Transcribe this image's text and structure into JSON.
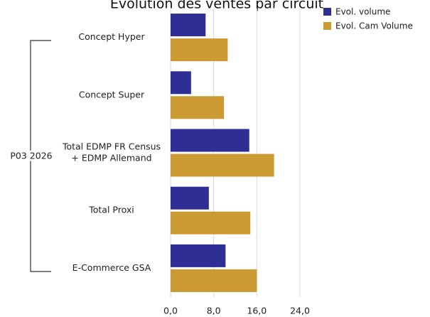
{
  "colors": {
    "evol_volume": "#2f2e94",
    "evol_cam_volume": "#cc9a33"
  },
  "chart_data": {
    "type": "bar",
    "orientation": "horizontal",
    "title": "Évolution des ventes par circuit",
    "group_label": "P03 2026",
    "categories": [
      [
        "Concept Hyper"
      ],
      [
        "Concept Super"
      ],
      [
        "Total EDMP FR Census",
        "+ EDMP Allemand"
      ],
      [
        "Total Proxi"
      ],
      [
        "E-Commerce GSA"
      ]
    ],
    "series": [
      {
        "name": "Evol. volume",
        "values": [
          6.5,
          3.8,
          14.6,
          7.1,
          10.2
        ]
      },
      {
        "name": "Evol. Cam Volume",
        "values": [
          10.6,
          9.9,
          19.2,
          14.8,
          16.0
        ]
      }
    ],
    "xlim": [
      0,
      24
    ],
    "xticks": [
      "0,0",
      "8,0",
      "16,0",
      "24,0"
    ],
    "xtick_values": [
      0,
      8,
      16,
      24
    ],
    "legend_position": "top-right",
    "grid": true
  }
}
